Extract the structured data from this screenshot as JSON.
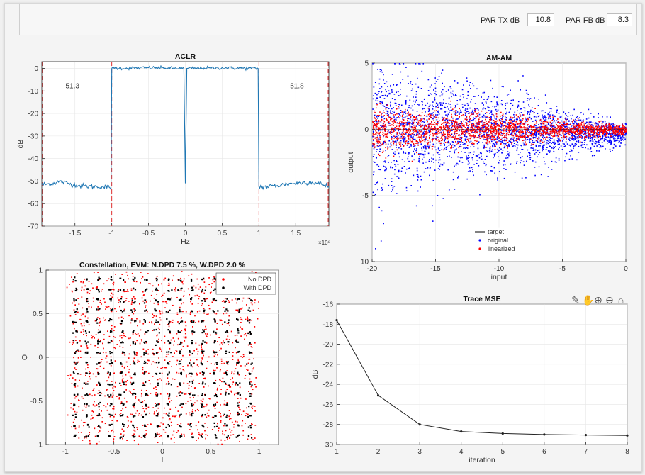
{
  "par": {
    "tx_label": "PAR TX dB",
    "tx_value": "10.8",
    "fb_label": "PAR FB dB",
    "fb_value": "8.3"
  },
  "toolbar": {
    "icons": [
      "brush-icon",
      "pan-icon",
      "zoom-in-icon",
      "zoom-out-icon",
      "home-icon"
    ]
  },
  "chart_data": [
    {
      "id": "aclr",
      "type": "line",
      "title": "ACLR",
      "xlabel": "Hz",
      "ylabel": "dB",
      "x_exponent": "×10⁸",
      "xlim": [
        -1.95,
        1.95
      ],
      "ylim": [
        -70,
        3
      ],
      "xticks": [
        "-1.5",
        "-1",
        "-0.5",
        "0",
        "0.5",
        "1",
        "1.5"
      ],
      "yticks": [
        "0",
        "-10",
        "-20",
        "-30",
        "-40",
        "-50",
        "-60",
        "-70"
      ],
      "annotations": [
        "-51.3",
        "-51.8"
      ],
      "band_edges": [
        -1,
        1
      ],
      "series": [
        {
          "x": [
            -1.95,
            -1.85,
            -1.7,
            -1.55,
            -1.4,
            -1.25,
            -1.1,
            -1.0,
            -1.0,
            -0.5,
            -0.02,
            0,
            0.02,
            0.5,
            1.0,
            1.0,
            1.1,
            1.25,
            1.4,
            1.55,
            1.7,
            1.85,
            1.95
          ],
          "y": [
            -51.5,
            -51.3,
            -50.2,
            -51.4,
            -52.2,
            -52.4,
            -52.6,
            -52.8,
            0,
            0.3,
            0,
            -51,
            0,
            0.2,
            0,
            -52.6,
            -52.5,
            -52,
            -51.2,
            -50.8,
            -50.4,
            -51.3,
            -52.5
          ]
        }
      ]
    },
    {
      "id": "amam",
      "type": "scatter",
      "title": "AM-AM",
      "xlabel": "input",
      "ylabel": "output",
      "xlim": [
        -20,
        0
      ],
      "ylim": [
        -10,
        5
      ],
      "xticks": [
        "-20",
        "-15",
        "-10",
        "-5",
        "0"
      ],
      "yticks": [
        "5",
        "0",
        "-5",
        "-10"
      ],
      "legend": [
        "target",
        "original",
        "linearized"
      ],
      "legend_position": "bottom-center",
      "series": [
        {
          "name": "target",
          "color": "#000000"
        },
        {
          "name": "original",
          "color": "#0000ff",
          "spread_at_min_input": 6,
          "spread_at_max_input": 1
        },
        {
          "name": "linearized",
          "color": "#ff0000",
          "spread_at_min_input": 2,
          "spread_at_max_input": 0.4
        }
      ]
    },
    {
      "id": "constellation",
      "type": "scatter",
      "title": "Constellation, EVM: N.DPD 7.5 %, W.DPD 2.0 %",
      "xlabel": "I",
      "ylabel": "Q",
      "xlim": [
        -1.2,
        1.2
      ],
      "ylim": [
        -1,
        1
      ],
      "xticks": [
        "-1",
        "-0.5",
        "0",
        "0.5",
        "1"
      ],
      "yticks": [
        "1",
        "0.5",
        "0",
        "-0.5",
        "-1"
      ],
      "legend": [
        "No DPD",
        "With DPD"
      ],
      "legend_position": "top-right",
      "grid_size": 16,
      "series": [
        {
          "name": "No DPD",
          "color": "#ff0000"
        },
        {
          "name": "With DPD",
          "color": "#000000"
        }
      ]
    },
    {
      "id": "trace_mse",
      "type": "line",
      "title": "Trace MSE",
      "xlabel": "iteration",
      "ylabel": "dB",
      "xlim": [
        1,
        8
      ],
      "ylim": [
        -30,
        -16
      ],
      "xticks": [
        "1",
        "2",
        "3",
        "4",
        "5",
        "6",
        "7",
        "8"
      ],
      "yticks": [
        "-16",
        "-18",
        "-20",
        "-22",
        "-24",
        "-26",
        "-28",
        "-30"
      ],
      "series": [
        {
          "x": [
            1,
            2,
            3,
            4,
            5,
            6,
            7,
            8
          ],
          "y": [
            -17.6,
            -25.1,
            -28.0,
            -28.7,
            -28.9,
            -29.0,
            -29.05,
            -29.1
          ]
        }
      ]
    }
  ]
}
